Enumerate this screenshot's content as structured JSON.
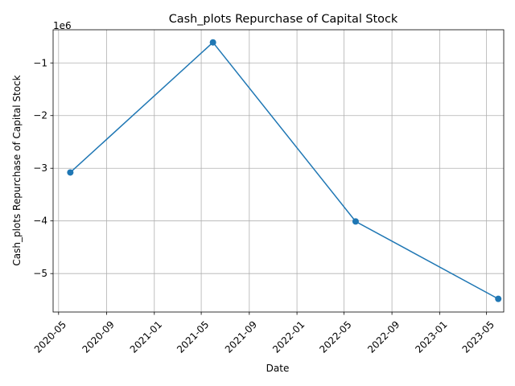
{
  "chart_data": {
    "type": "line",
    "title": "Cash_plots Repurchase of Capital Stock",
    "xlabel": "Date",
    "ylabel": "Cash_plots Repurchase of Capital Stock",
    "y_offset_label": "1e6",
    "x_ticks": [
      "2020-05-01",
      "2020-09-01",
      "2021-01-01",
      "2021-05-01",
      "2021-09-01",
      "2022-01-01",
      "2022-05-01",
      "2022-09-01",
      "2023-01-01",
      "2023-05-01"
    ],
    "x_tick_labels": [
      "2020-05",
      "2020-09",
      "2021-01",
      "2021-05",
      "2021-09",
      "2022-01",
      "2022-05",
      "2022-09",
      "2023-01",
      "2023-05"
    ],
    "y_ticks": [
      -5,
      -4,
      -3,
      -2,
      -1
    ],
    "y_tick_labels": [
      "−5",
      "−4",
      "−3",
      "−2",
      "−1"
    ],
    "xlim": [
      "2020-04-17",
      "2023-06-14"
    ],
    "ylim": [
      -5.73,
      -0.37
    ],
    "grid": true,
    "series": [
      {
        "color": "#1f77b4",
        "marker": "circle",
        "points": [
          {
            "x": "2020-05-31",
            "y": -3.08
          },
          {
            "x": "2021-05-31",
            "y": -0.61
          },
          {
            "x": "2022-05-31",
            "y": -4.01
          },
          {
            "x": "2023-05-31",
            "y": -5.48
          }
        ]
      }
    ]
  }
}
